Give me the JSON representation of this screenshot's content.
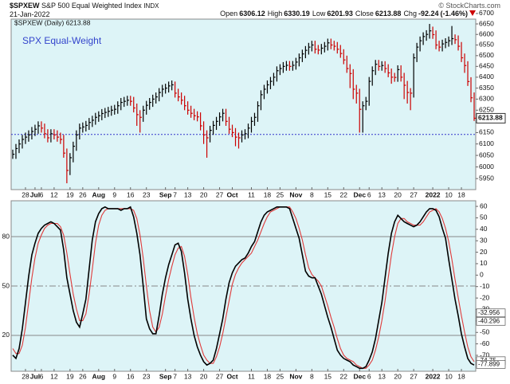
{
  "chart_data": [
    {
      "type": "ohlc",
      "symbol": "$SPXEW",
      "title": "S&P 500 Equal Weighted Index",
      "exchange": "INDX",
      "date": "21-Jan-2022",
      "source": "© StockCharts.com",
      "quote": [
        {
          "label": "Open",
          "value": 6306.12
        },
        {
          "label": "High",
          "value": 6330.19
        },
        {
          "label": "Low",
          "value": 6201.93
        },
        {
          "label": "Close",
          "value": 6213.88
        },
        {
          "label": "Chg",
          "value": -92.24
        }
      ],
      "change_pct": "(-1.46%)",
      "legend": "SPX Equal-Weight",
      "series_label": "$SPXEW (Daily) 6213.88",
      "log_scale": true,
      "xlim": [
        -0.5,
        145.5
      ],
      "xticks": [
        {
          "value": 4,
          "label": "28"
        },
        {
          "value": 7,
          "label": "Jul"
        },
        {
          "value": 9,
          "label": "6"
        },
        {
          "value": 13,
          "label": "12"
        },
        {
          "value": 18,
          "label": "19"
        },
        {
          "value": 22,
          "label": "26"
        },
        {
          "value": 27,
          "label": "Aug"
        },
        {
          "value": 32,
          "label": "9"
        },
        {
          "value": 37,
          "label": "16"
        },
        {
          "value": 42,
          "label": "23"
        },
        {
          "value": 48,
          "label": "Sep"
        },
        {
          "value": 51,
          "label": "7"
        },
        {
          "value": 55,
          "label": "13"
        },
        {
          "value": 60,
          "label": "20"
        },
        {
          "value": 65,
          "label": "27"
        },
        {
          "value": 69,
          "label": "Oct"
        },
        {
          "value": 75,
          "label": "11"
        },
        {
          "value": 80,
          "label": "18"
        },
        {
          "value": 84,
          "label": "25"
        },
        {
          "value": 89,
          "label": "Nov"
        },
        {
          "value": 94,
          "label": "8"
        },
        {
          "value": 99,
          "label": "15"
        },
        {
          "value": 104,
          "label": "22"
        },
        {
          "value": 109,
          "label": "Dec"
        },
        {
          "value": 112,
          "label": "6"
        },
        {
          "value": 116,
          "label": "13"
        },
        {
          "value": 121,
          "label": "20"
        },
        {
          "value": 126,
          "label": "27"
        },
        {
          "value": 132,
          "label": "2022"
        },
        {
          "value": 137,
          "label": "10"
        },
        {
          "value": 141,
          "label": "18"
        }
      ],
      "ylim": [
        5903,
        6673
      ],
      "yticks": [
        5950,
        6000,
        6050,
        6100,
        6150,
        6250,
        6300,
        6350,
        6400,
        6450,
        6500,
        6550,
        6600,
        6650,
        6700
      ],
      "hline": 6142,
      "hline_color": "#3333cc",
      "colors": {
        "up": "#000000",
        "down": "#cc0000"
      },
      "high": [
        6075,
        6100,
        6120,
        6140,
        6150,
        6160,
        6175,
        6185,
        6200,
        6200,
        6190,
        6165,
        6165,
        6165,
        6160,
        6150,
        6140,
        6080,
        6060,
        6110,
        6160,
        6190,
        6195,
        6202,
        6215,
        6225,
        6238,
        6245,
        6255,
        6260,
        6265,
        6270,
        6274,
        6290,
        6305,
        6310,
        6315,
        6315,
        6310,
        6280,
        6250,
        6270,
        6292,
        6305,
        6320,
        6330,
        6350,
        6365,
        6370,
        6380,
        6385,
        6380,
        6347,
        6330,
        6315,
        6290,
        6270,
        6256,
        6245,
        6240,
        6200,
        6160,
        6180,
        6202,
        6220,
        6240,
        6256,
        6256,
        6220,
        6185,
        6170,
        6150,
        6160,
        6165,
        6190,
        6220,
        6238,
        6290,
        6340,
        6365,
        6385,
        6401,
        6420,
        6450,
        6460,
        6470,
        6475,
        6475,
        6475,
        6490,
        6510,
        6528,
        6545,
        6560,
        6570,
        6570,
        6550,
        6555,
        6564,
        6580,
        6580,
        6570,
        6564,
        6550,
        6530,
        6500,
        6460,
        6437,
        6365,
        6347,
        6290,
        6310,
        6401,
        6450,
        6480,
        6480,
        6474,
        6474,
        6460,
        6440,
        6420,
        6455,
        6455,
        6420,
        6383,
        6350,
        6510,
        6560,
        6590,
        6610,
        6620,
        6650,
        6637,
        6619,
        6570,
        6575,
        6582,
        6590,
        6640,
        6600,
        6595,
        6564,
        6510,
        6474,
        6400,
        6330.19
      ],
      "low": [
        6035,
        6035,
        6060,
        6080,
        6100,
        6110,
        6120,
        6135,
        6145,
        6150,
        6125,
        6107,
        6107,
        6120,
        6110,
        6100,
        6040,
        5930,
        5965,
        6020,
        6070,
        6120,
        6150,
        6155,
        6162,
        6175,
        6185,
        6198,
        6205,
        6215,
        6220,
        6225,
        6230,
        6234,
        6250,
        6265,
        6270,
        6270,
        6240,
        6180,
        6150,
        6198,
        6230,
        6252,
        6265,
        6280,
        6290,
        6310,
        6325,
        6330,
        6340,
        6307,
        6290,
        6275,
        6250,
        6230,
        6216,
        6205,
        6200,
        6160,
        6100,
        6040,
        6107,
        6140,
        6162,
        6180,
        6200,
        6180,
        6145,
        6130,
        6090,
        6080,
        6107,
        6120,
        6125,
        6150,
        6180,
        6198,
        6250,
        6300,
        6325,
        6345,
        6361,
        6380,
        6410,
        6420,
        6430,
        6430,
        6430,
        6435,
        6450,
        6470,
        6488,
        6505,
        6520,
        6510,
        6506,
        6506,
        6515,
        6524,
        6530,
        6524,
        6510,
        6490,
        6460,
        6420,
        6350,
        6300,
        6280,
        6150,
        6150,
        6250,
        6270,
        6361,
        6410,
        6430,
        6430,
        6420,
        6400,
        6370,
        6379,
        6379,
        6380,
        6300,
        6280,
        6250,
        6307,
        6470,
        6520,
        6550,
        6570,
        6580,
        6579,
        6530,
        6520,
        6520,
        6535,
        6542,
        6550,
        6555,
        6524,
        6470,
        6420,
        6360,
        6286,
        6201.93
      ],
      "close": [
        6055,
        6080,
        6100,
        6120,
        6130,
        6140,
        6155,
        6165,
        6180,
        6170,
        6145,
        6127,
        6145,
        6140,
        6130,
        6120,
        6060,
        5985,
        6040,
        6090,
        6140,
        6170,
        6175,
        6182,
        6195,
        6205,
        6218,
        6225,
        6235,
        6240,
        6245,
        6250,
        6254,
        6270,
        6285,
        6290,
        6295,
        6290,
        6260,
        6230,
        6218,
        6250,
        6272,
        6285,
        6300,
        6310,
        6330,
        6345,
        6350,
        6360,
        6365,
        6327,
        6310,
        6295,
        6270,
        6250,
        6236,
        6225,
        6220,
        6180,
        6140,
        6127,
        6160,
        6182,
        6200,
        6220,
        6236,
        6200,
        6165,
        6150,
        6130,
        6127,
        6140,
        6145,
        6170,
        6200,
        6218,
        6270,
        6320,
        6345,
        6365,
        6381,
        6400,
        6430,
        6440,
        6450,
        6455,
        6450,
        6455,
        6470,
        6490,
        6508,
        6525,
        6540,
        6550,
        6530,
        6526,
        6535,
        6544,
        6560,
        6550,
        6544,
        6530,
        6510,
        6480,
        6440,
        6417,
        6345,
        6327,
        6254,
        6270,
        6290,
        6381,
        6430,
        6460,
        6450,
        6454,
        6440,
        6420,
        6400,
        6399,
        6435,
        6400,
        6363,
        6330,
        6327,
        6490,
        6540,
        6570,
        6590,
        6600,
        6617,
        6599,
        6550,
        6540,
        6555,
        6562,
        6570,
        6580,
        6575,
        6544,
        6490,
        6454,
        6380,
        6306,
        6213.88
      ]
    },
    {
      "type": "line",
      "xlim": [
        -0.5,
        145.5
      ],
      "xticks": [
        {
          "value": 4,
          "label": "28"
        },
        {
          "value": 7,
          "label": "Jul"
        },
        {
          "value": 9,
          "label": "6"
        },
        {
          "value": 13,
          "label": "12"
        },
        {
          "value": 18,
          "label": "19"
        },
        {
          "value": 22,
          "label": "26"
        },
        {
          "value": 27,
          "label": "Aug"
        },
        {
          "value": 32,
          "label": "9"
        },
        {
          "value": 37,
          "label": "16"
        },
        {
          "value": 42,
          "label": "23"
        },
        {
          "value": 48,
          "label": "Sep"
        },
        {
          "value": 51,
          "label": "7"
        },
        {
          "value": 55,
          "label": "13"
        },
        {
          "value": 60,
          "label": "20"
        },
        {
          "value": 65,
          "label": "27"
        },
        {
          "value": 69,
          "label": "Oct"
        },
        {
          "value": 75,
          "label": "11"
        },
        {
          "value": 80,
          "label": "18"
        },
        {
          "value": 84,
          "label": "25"
        },
        {
          "value": 89,
          "label": "Nov"
        },
        {
          "value": 94,
          "label": "8"
        },
        {
          "value": 99,
          "label": "15"
        },
        {
          "value": 104,
          "label": "22"
        },
        {
          "value": 109,
          "label": "Dec"
        },
        {
          "value": 112,
          "label": "6"
        },
        {
          "value": 116,
          "label": "13"
        },
        {
          "value": 121,
          "label": "20"
        },
        {
          "value": 126,
          "label": "27"
        },
        {
          "value": 132,
          "label": "2022"
        },
        {
          "value": 137,
          "label": "10"
        },
        {
          "value": 141,
          "label": "18"
        }
      ],
      "ylim": [
        -1.8,
        101.8
      ],
      "yticks": [
        20,
        50,
        80
      ],
      "grid": true,
      "grid_styles": [
        "solid",
        "dash-dot",
        "solid"
      ],
      "y2lim": [
        -83.9,
        64.9
      ],
      "y2ticks": [
        60,
        50,
        40,
        30,
        20,
        10,
        0,
        -10,
        -20,
        -30,
        -40,
        -50,
        -60,
        -70
      ],
      "annotations": [
        -32.956,
        -40.296,
        -74.75,
        -77.899
      ],
      "series": [
        {
          "color": "#000000",
          "values": [
            8,
            6,
            12,
            24,
            40,
            56,
            69,
            76,
            82,
            85,
            87,
            88,
            89,
            88,
            86,
            84,
            72,
            55,
            45,
            35,
            28,
            25,
            33,
            42,
            60,
            78,
            89,
            94,
            97,
            98,
            97,
            97,
            97,
            97,
            96,
            97,
            97,
            98,
            92,
            82,
            69,
            50,
            30,
            24,
            21,
            21,
            32,
            45,
            55,
            63,
            69,
            75,
            76,
            71,
            58,
            42,
            30,
            20,
            13,
            8,
            4,
            2,
            3,
            5,
            12,
            21,
            30,
            42,
            52,
            58,
            62,
            64,
            66,
            67,
            70,
            74,
            77,
            83,
            89,
            93,
            95,
            96,
            97,
            98,
            98,
            98,
            98,
            97,
            91,
            85,
            79,
            69,
            59,
            56,
            55,
            55,
            50,
            45,
            38,
            31,
            25,
            18,
            11,
            8,
            6,
            5,
            4,
            2,
            1,
            0,
            0,
            1,
            5,
            10,
            18,
            29,
            40,
            55,
            70,
            82,
            89,
            93,
            91,
            89,
            88,
            87,
            86,
            87,
            89,
            92,
            95,
            97,
            97,
            96,
            92,
            85,
            79,
            66,
            54,
            42,
            32,
            21,
            13,
            6,
            3,
            2
          ]
        },
        {
          "color": "#e03a3a",
          "values": [
            12,
            9,
            9,
            14,
            25,
            40,
            55,
            67,
            76,
            81,
            85,
            87,
            88,
            88,
            88,
            86,
            81,
            70,
            57,
            45,
            36,
            29,
            29,
            33,
            45,
            60,
            76,
            87,
            93,
            96,
            97,
            97,
            97,
            97,
            97,
            97,
            97,
            97,
            96,
            91,
            81,
            67,
            50,
            35,
            25,
            22,
            25,
            33,
            44,
            54,
            62,
            69,
            73,
            74,
            68,
            57,
            43,
            31,
            21,
            14,
            8,
            5,
            3,
            3,
            7,
            13,
            21,
            31,
            41,
            51,
            57,
            61,
            64,
            66,
            68,
            70,
            74,
            78,
            83,
            88,
            92,
            95,
            96,
            97,
            98,
            98,
            98,
            98,
            95,
            91,
            85,
            78,
            69,
            61,
            57,
            55,
            53,
            50,
            44,
            38,
            31,
            25,
            18,
            12,
            8,
            6,
            5,
            4,
            2,
            1,
            0,
            0,
            2,
            5,
            11,
            19,
            29,
            41,
            55,
            69,
            80,
            88,
            91,
            91,
            89,
            88,
            87,
            87,
            87,
            89,
            92,
            95,
            96,
            97,
            95,
            91,
            85,
            77,
            66,
            54,
            43,
            32,
            22,
            13,
            7,
            4
          ]
        }
      ]
    }
  ]
}
